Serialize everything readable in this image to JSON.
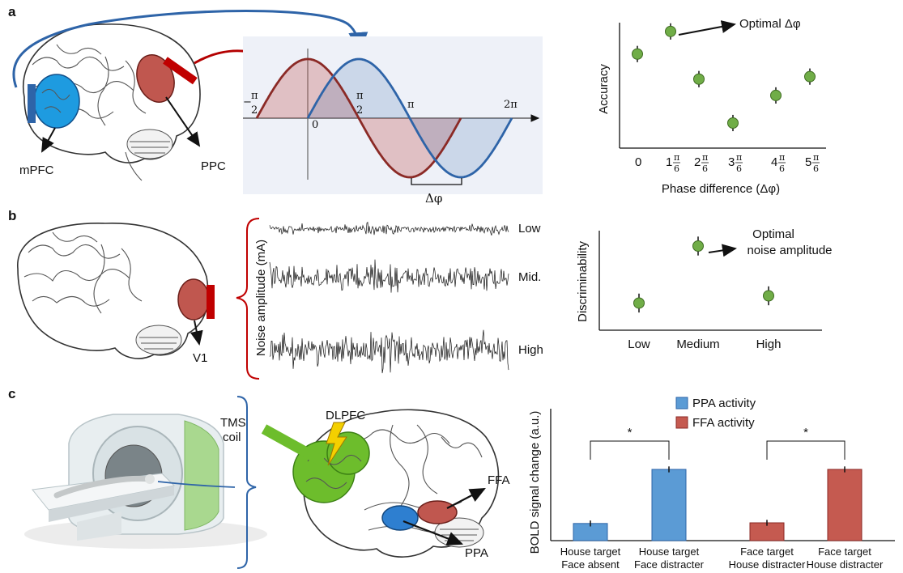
{
  "panels": {
    "a": {
      "letter": "a",
      "brain_labels": {
        "mpfc": "mPFC",
        "ppc": "PPC"
      },
      "wave_ticks": {
        "neg_half_pi_sign": "−",
        "pi_num": "π",
        "pi_den": "2",
        "zero": "0",
        "pi": "π",
        "two_pi": "2π"
      },
      "delta_label": "Δφ",
      "optimal_label": "Optimal Δφ",
      "colors": {
        "red": "#c0504d",
        "blue": "#2e64a8",
        "mpfc": "#1e9be0",
        "coil_red": "#c00000",
        "coil_blue": "#2e64a8",
        "marker": "#70ad47"
      }
    },
    "b": {
      "letter": "b",
      "brain_label": "V1",
      "noise_axis_label": "Noise amplitude (mA)",
      "traces": [
        "Low",
        "Mid.",
        "High"
      ],
      "optimal_label_line1": "Optimal",
      "optimal_label_line2": "noise amplitude"
    },
    "c": {
      "letter": "c",
      "tms_line1": "TMS",
      "tms_line2": "coil",
      "dlpfc": "DLPFC",
      "ffa": "FFA",
      "ppa": "PPA",
      "star": "*"
    }
  },
  "chart_data": [
    {
      "type": "scatter",
      "panel": "a",
      "xlabel": "Phase difference (Δφ)",
      "ylabel": "Accuracy",
      "x_tick_labels": [
        {
          "lead": "0",
          "num": "",
          "den": ""
        },
        {
          "lead": "1",
          "num": "π",
          "den": "6"
        },
        {
          "lead": "2",
          "num": "π",
          "den": "6"
        },
        {
          "lead": "3",
          "num": "π",
          "den": "6"
        },
        {
          "lead": "4",
          "num": "π",
          "den": "6"
        },
        {
          "lead": "5",
          "num": "π",
          "den": "6"
        }
      ],
      "x": [
        0,
        1,
        2,
        3,
        4,
        5
      ],
      "values": [
        0.75,
        0.93,
        0.55,
        0.2,
        0.42,
        0.57
      ],
      "error": [
        0.13,
        0.13,
        0.13,
        0.13,
        0.13,
        0.13
      ],
      "ylim": [
        0,
        1
      ],
      "annotation": "Optimal Δφ",
      "grid": false
    },
    {
      "type": "scatter",
      "panel": "b",
      "xlabel": "",
      "ylabel": "Discriminability",
      "categories": [
        "Low",
        "Medium",
        "High"
      ],
      "values": [
        0.3,
        0.93,
        0.38
      ],
      "error": [
        0.19,
        0.19,
        0.19
      ],
      "ylim": [
        0,
        1.1
      ],
      "annotation": "Optimal noise amplitude",
      "grid": false
    },
    {
      "type": "bar",
      "panel": "c",
      "ylabel": "BOLD signal change (a.u.)",
      "categories": [
        {
          "line1": "House target",
          "line2": "Face absent"
        },
        {
          "line1": "House target",
          "line2": "Face distracter"
        },
        {
          "line1": "Face target",
          "line2": "House distracter"
        },
        {
          "line1": "Face target",
          "line2": "House distracter"
        }
      ],
      "series": [
        {
          "name": "PPA activity",
          "color": "#5b9bd5"
        },
        {
          "name": "FFA activity",
          "color": "#c55a50"
        }
      ],
      "bar_series": [
        0,
        0,
        1,
        1
      ],
      "values": [
        0.13,
        0.54,
        0.135,
        0.54
      ],
      "error": [
        0.045,
        0.045,
        0.045,
        0.045
      ],
      "ylim": [
        0,
        1
      ],
      "significance": [
        {
          "pair": [
            0,
            1
          ],
          "label": "*"
        },
        {
          "pair": [
            2,
            3
          ],
          "label": "*"
        }
      ],
      "grid": false
    }
  ]
}
